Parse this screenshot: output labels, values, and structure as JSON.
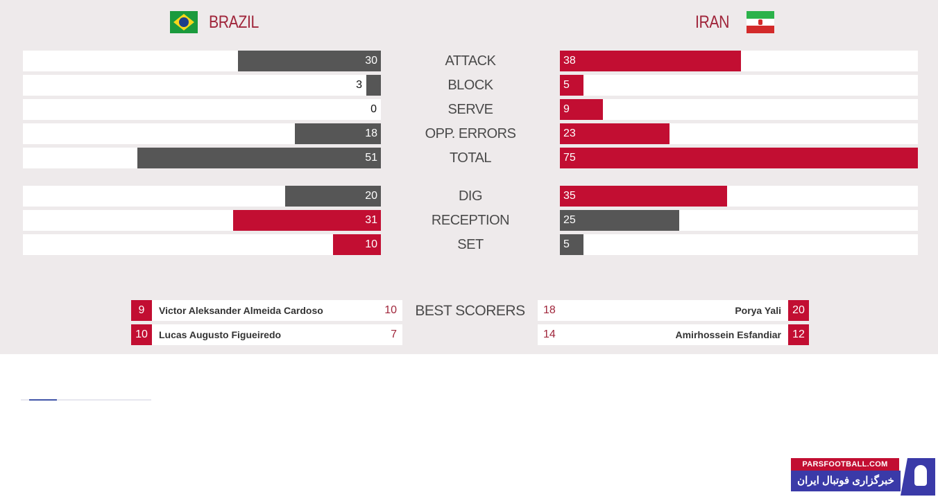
{
  "teams": {
    "left": {
      "name": "BRAZIL",
      "flag_icon": "brazil-flag-icon"
    },
    "right": {
      "name": "IRAN",
      "flag_icon": "iran-flag-icon"
    }
  },
  "colors": {
    "team_bar_gray": "#565656",
    "team_bar_red": "#c20e32",
    "panel_bg": "#eeeaeb",
    "accent": "#a0263b"
  },
  "stats": [
    {
      "label": "ATTACK",
      "left": 30,
      "right": 38,
      "left_color": "gray",
      "right_color": "red"
    },
    {
      "label": "BLOCK",
      "left": 3,
      "right": 5,
      "left_color": "gray",
      "right_color": "red"
    },
    {
      "label": "SERVE",
      "left": 0,
      "right": 9,
      "left_color": "gray",
      "right_color": "red"
    },
    {
      "label": "OPP. ERRORS",
      "left": 18,
      "right": 23,
      "left_color": "gray",
      "right_color": "red"
    },
    {
      "label": "TOTAL",
      "left": 51,
      "right": 75,
      "left_color": "gray",
      "right_color": "red"
    },
    {
      "label": "DIG",
      "left": 20,
      "right": 35,
      "left_color": "gray",
      "right_color": "red"
    },
    {
      "label": "RECEPTION",
      "left": 31,
      "right": 25,
      "left_color": "red",
      "right_color": "gray"
    },
    {
      "label": "SET",
      "left": 10,
      "right": 5,
      "left_color": "red",
      "right_color": "gray"
    }
  ],
  "best_scorers": {
    "label": "BEST SCORERS",
    "left": [
      {
        "number": "9",
        "name": "Victor Aleksander Almeida Cardoso",
        "points": "10"
      },
      {
        "number": "10",
        "name": "Lucas Augusto Figueiredo",
        "points": "7"
      }
    ],
    "right": [
      {
        "number": "20",
        "name": "Porya Yali",
        "points": "18"
      },
      {
        "number": "12",
        "name": "Amirhossein Esfandiar",
        "points": "14"
      }
    ]
  },
  "watermark": {
    "top": "PARSFOOTBALL.COM",
    "bottom": "خبرگزاری فوتبال ایران"
  }
}
